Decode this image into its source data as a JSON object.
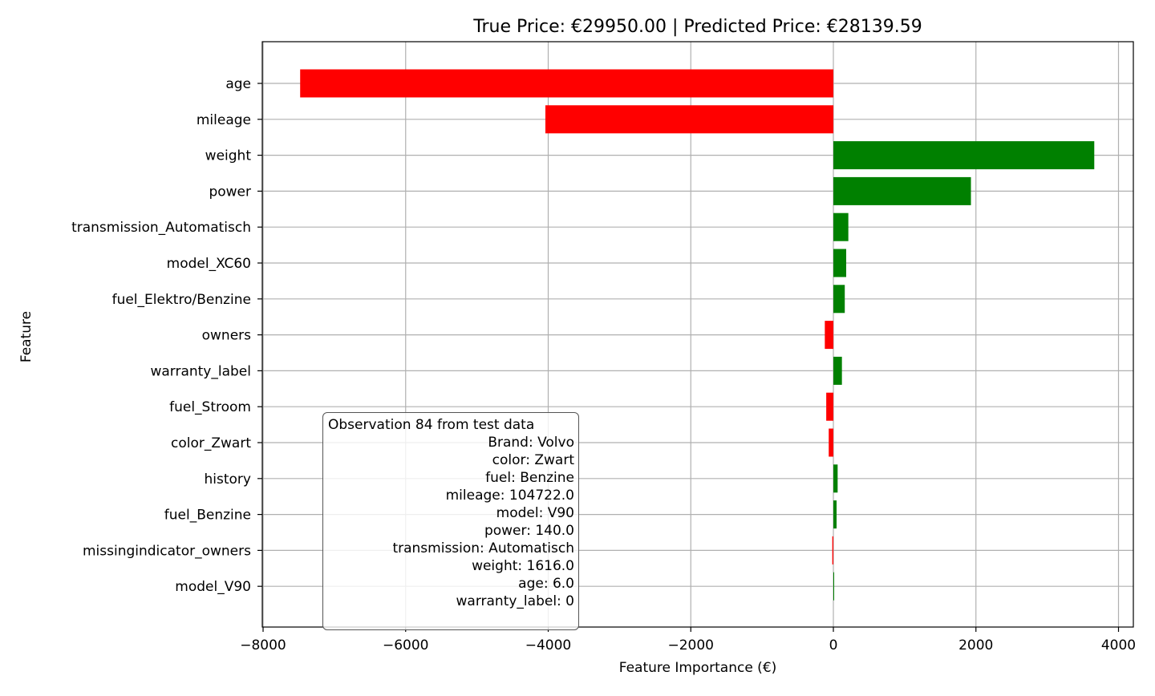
{
  "chart_data": {
    "type": "bar",
    "orientation": "horizontal",
    "title": "True Price: €29950.00 | Predicted Price: €28139.59",
    "xlabel": "Feature Importance (€)",
    "ylabel": "Feature",
    "xlim": [
      -8000,
      4200
    ],
    "xticks": [
      -8000,
      -6000,
      -4000,
      -2000,
      0,
      2000,
      4000
    ],
    "xtick_labels": [
      "−8000",
      "−6000",
      "−4000",
      "−2000",
      "0",
      "2000",
      "4000"
    ],
    "grid": true,
    "colors": {
      "positive": "#008000",
      "negative": "#ff0000"
    },
    "categories": [
      "age",
      "mileage",
      "weight",
      "power",
      "transmission_Automatisch",
      "model_XC60",
      "fuel_Elektro/Benzine",
      "owners",
      "warranty_label",
      "fuel_Stroom",
      "color_Zwart",
      "history",
      "fuel_Benzine",
      "missingindicator_owners",
      "model_V90"
    ],
    "values": [
      -7480,
      -4040,
      3660,
      1930,
      210,
      180,
      160,
      -120,
      120,
      -100,
      -65,
      60,
      45,
      -15,
      5
    ],
    "annotation": {
      "title": "Observation 84 from test data",
      "lines": [
        "Brand: Volvo",
        "color: Zwart",
        "fuel: Benzine",
        "mileage: 104722.0",
        "model: V90",
        "power: 140.0",
        "transmission: Automatisch",
        "weight: 1616.0",
        "age: 6.0",
        "warranty_label: 0"
      ]
    }
  }
}
